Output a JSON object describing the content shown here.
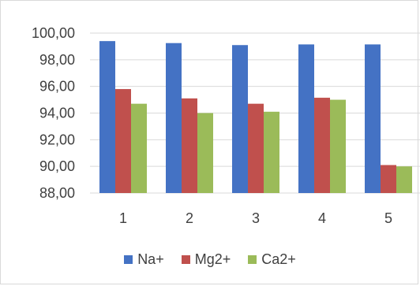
{
  "chart_data": {
    "type": "bar",
    "categories": [
      "1",
      "2",
      "3",
      "4",
      "5"
    ],
    "series": [
      {
        "name": "Na+",
        "color": "#4472c4",
        "values": [
          99.4,
          99.25,
          99.1,
          99.15,
          99.15
        ]
      },
      {
        "name": "Mg2+",
        "color": "#c0504d",
        "values": [
          95.8,
          95.1,
          94.7,
          95.15,
          90.1
        ]
      },
      {
        "name": "Ca2+",
        "color": "#9bbb59",
        "values": [
          94.7,
          94.0,
          94.1,
          95.0,
          90.0
        ]
      }
    ],
    "y_ticks": [
      "88,00",
      "90,00",
      "92,00",
      "94,00",
      "96,00",
      "98,00",
      "100,00"
    ],
    "ylim": [
      88,
      100
    ],
    "grid": true,
    "legend_position": "bottom"
  }
}
